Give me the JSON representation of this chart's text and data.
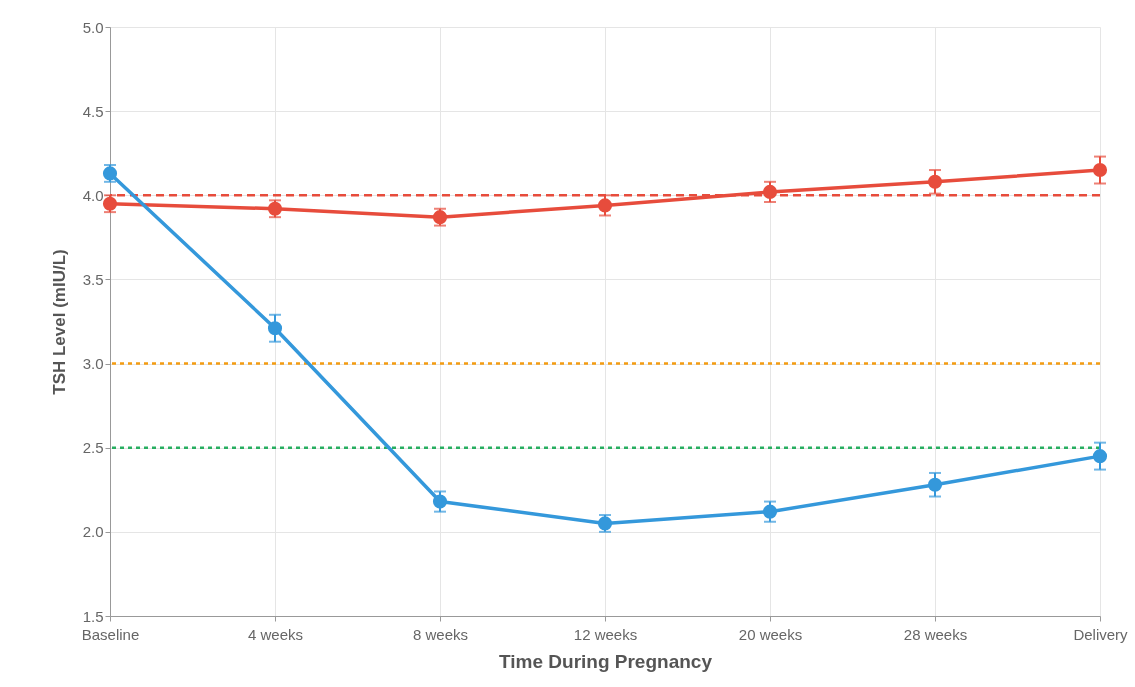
{
  "chart_data": {
    "type": "line",
    "xlabel": "Time During Pregnancy",
    "ylabel": "TSH Level (mIU/L)",
    "categories": [
      "Baseline",
      "4 weeks",
      "8 weeks",
      "12 weeks",
      "20 weeks",
      "28 weeks",
      "Delivery"
    ],
    "series": [
      {
        "color": "#e74c3c",
        "values": [
          3.95,
          3.92,
          3.87,
          3.94,
          4.02,
          4.08,
          4.15
        ],
        "errors": [
          0.05,
          0.05,
          0.05,
          0.06,
          0.06,
          0.07,
          0.08
        ]
      },
      {
        "color": "#3498db",
        "values": [
          4.13,
          3.21,
          2.18,
          2.05,
          2.12,
          2.28,
          2.45
        ],
        "errors": [
          0.05,
          0.08,
          0.06,
          0.05,
          0.06,
          0.07,
          0.08
        ]
      }
    ],
    "ref_lines": [
      {
        "axis": "y",
        "value": 4.0,
        "color": "#e74c3c",
        "line_style": "dashed"
      },
      {
        "axis": "y",
        "value": 3.0,
        "color": "#f39c12",
        "line_style": "dotted"
      },
      {
        "axis": "y",
        "value": 2.5,
        "color": "#27ae60",
        "line_style": "dotted"
      }
    ],
    "ylim": [
      1.5,
      5.0
    ],
    "yticks": [
      {
        "value": 1.5,
        "label": "1.5"
      },
      {
        "value": 2.0,
        "label": "2.0"
      },
      {
        "value": 2.5,
        "label": "2.5"
      },
      {
        "value": 3.0,
        "label": "3.0"
      },
      {
        "value": 3.5,
        "label": "3.5"
      },
      {
        "value": 4.0,
        "label": "4.0"
      },
      {
        "value": 4.5,
        "label": "4.5"
      },
      {
        "value": 5.0,
        "label": "5.0"
      }
    ],
    "grid": true,
    "marker": "circle",
    "line_style": "solid"
  }
}
